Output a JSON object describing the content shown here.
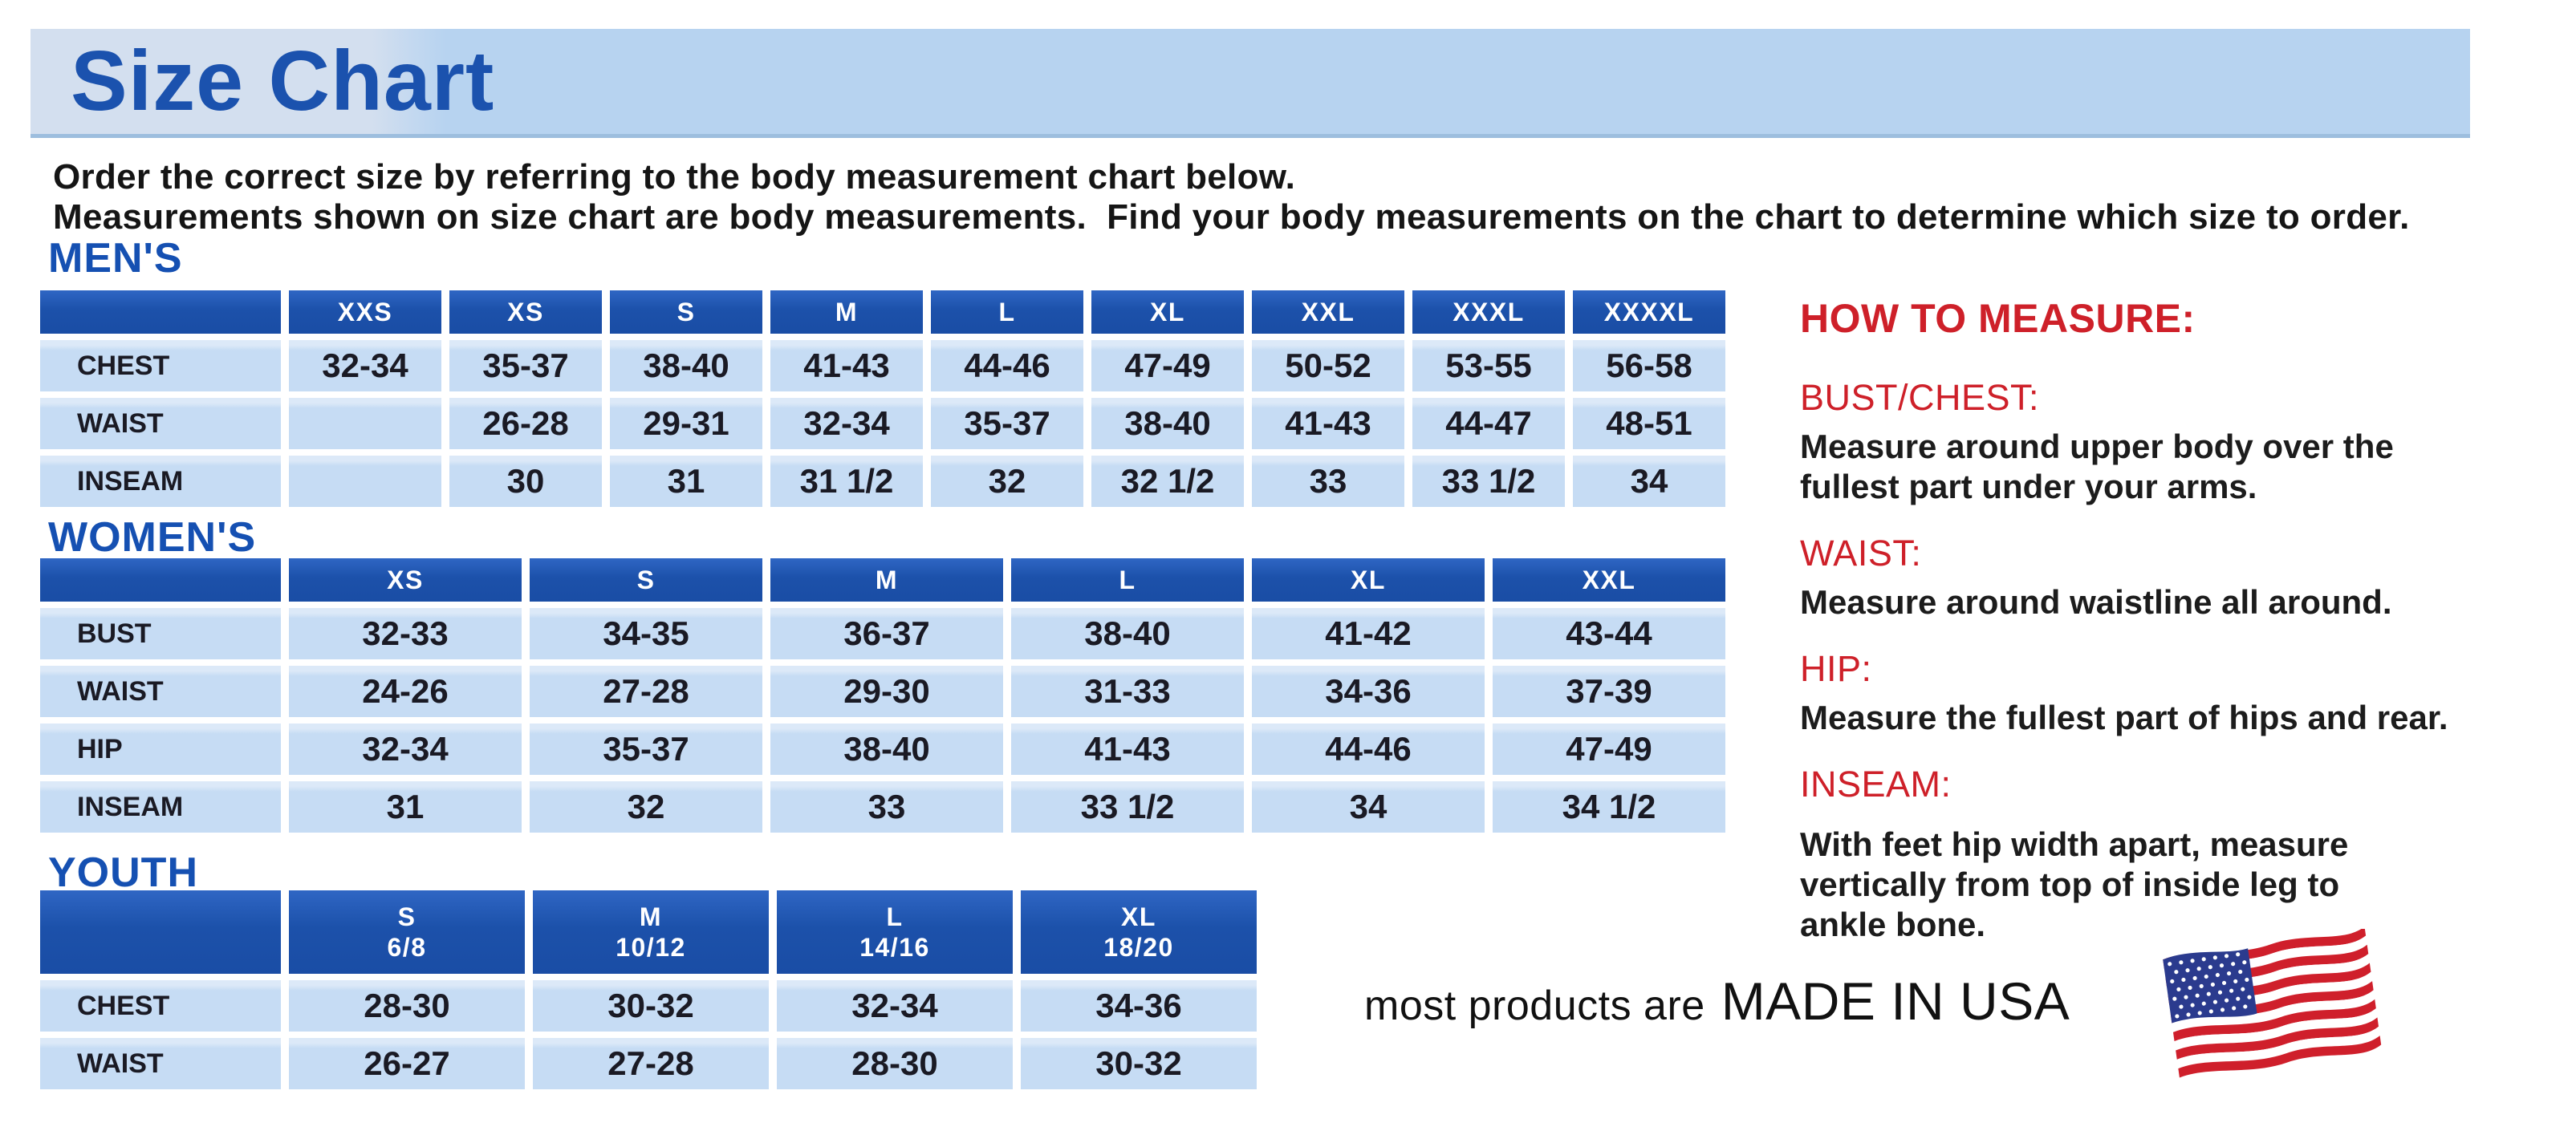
{
  "page": {
    "title": "Size Chart",
    "intro_line1": "Order the correct size by referring to the body measurement chart below.",
    "intro_line2": "Measurements shown on size chart are body measurements.  Find your body measurements on the chart to determine which size to order."
  },
  "colors": {
    "banner_bg": "#b7d3f0",
    "title_blue": "#1b52ae",
    "heading_blue": "#1550b2",
    "header_cell_blue": "#1c51aa",
    "cell_bg": "#c6dcf4",
    "red": "#ce2029",
    "text": "#161616",
    "flag_red": "#cf1f2b",
    "flag_blue": "#2b3b8e"
  },
  "tables": {
    "mens": {
      "heading": "MEN'S",
      "columns": [
        "XXS",
        "XS",
        "S",
        "M",
        "L",
        "XL",
        "XXL",
        "XXXL",
        "XXXXL"
      ],
      "rows": [
        {
          "label": "CHEST",
          "values": [
            "32-34",
            "35-37",
            "38-40",
            "41-43",
            "44-46",
            "47-49",
            "50-52",
            "53-55",
            "56-58"
          ]
        },
        {
          "label": "WAIST",
          "values": [
            "",
            "26-28",
            "29-31",
            "32-34",
            "35-37",
            "38-40",
            "41-43",
            "44-47",
            "48-51"
          ]
        },
        {
          "label": "INSEAM",
          "values": [
            "",
            "30",
            "31",
            "31 1/2",
            "32",
            "32 1/2",
            "33",
            "33 1/2",
            "34"
          ]
        }
      ]
    },
    "womens": {
      "heading": "WOMEN'S",
      "columns": [
        "XS",
        "S",
        "M",
        "L",
        "XL",
        "XXL"
      ],
      "rows": [
        {
          "label": "BUST",
          "values": [
            "32-33",
            "34-35",
            "36-37",
            "38-40",
            "41-42",
            "43-44"
          ]
        },
        {
          "label": "WAIST",
          "values": [
            "24-26",
            "27-28",
            "29-30",
            "31-33",
            "34-36",
            "37-39"
          ]
        },
        {
          "label": "HIP",
          "values": [
            "32-34",
            "35-37",
            "38-40",
            "41-43",
            "44-46",
            "47-49"
          ]
        },
        {
          "label": "INSEAM",
          "values": [
            "31",
            "32",
            "33",
            "33 1/2",
            "34",
            "34 1/2"
          ]
        }
      ]
    },
    "youth": {
      "heading": "YOUTH",
      "columns": [
        "S\n6/8",
        "M\n10/12",
        "L\n14/16",
        "XL\n18/20"
      ],
      "rows": [
        {
          "label": "CHEST",
          "values": [
            "28-30",
            "30-32",
            "32-34",
            "34-36"
          ]
        },
        {
          "label": "WAIST",
          "values": [
            "26-27",
            "27-28",
            "28-30",
            "30-32"
          ]
        }
      ]
    }
  },
  "how_to_measure": {
    "heading": "HOW TO MEASURE:",
    "sections": [
      {
        "label": "BUST/CHEST:",
        "text": "Measure around upper body over the\nfullest part under your arms."
      },
      {
        "label": "WAIST:",
        "text": "Measure around waistline all around."
      },
      {
        "label": "HIP:",
        "text": "Measure the fullest part of hips and rear."
      },
      {
        "label": "INSEAM:",
        "text": "With feet hip width apart, measure\nvertically from top of inside leg to\nankle bone."
      }
    ]
  },
  "footer": {
    "prefix": "most products are",
    "emphasis": "MADE IN USA",
    "flag_icon": "usa-flag-icon"
  }
}
